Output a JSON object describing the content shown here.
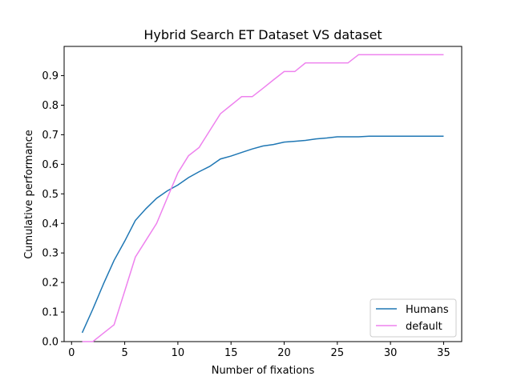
{
  "chart_data": {
    "type": "line",
    "title": "Hybrid Search ET Dataset VS dataset",
    "xlabel": "Number of fixations",
    "ylabel": "Cumulative performance",
    "xlim": [
      -0.7,
      36.7
    ],
    "ylim": [
      0.0,
      0.999
    ],
    "x_ticks": [
      0,
      5,
      10,
      15,
      20,
      25,
      30,
      35
    ],
    "y_ticks": [
      0.0,
      0.1,
      0.2,
      0.3,
      0.4,
      0.5,
      0.6,
      0.7,
      0.8,
      0.9
    ],
    "y_tick_labels": [
      "0.0",
      "0.1",
      "0.2",
      "0.3",
      "0.4",
      "0.5",
      "0.6",
      "0.7",
      "0.8",
      "0.9"
    ],
    "grid": false,
    "legend_position": "lower-right",
    "x": [
      1,
      2,
      3,
      4,
      5,
      6,
      7,
      8,
      9,
      10,
      11,
      12,
      13,
      14,
      15,
      16,
      17,
      18,
      19,
      20,
      21,
      22,
      23,
      24,
      25,
      26,
      27,
      28,
      29,
      30,
      31,
      32,
      33,
      34,
      35
    ],
    "series": [
      {
        "name": "Humans",
        "color": "#1f77b4",
        "values": [
          0.03,
          0.11,
          0.195,
          0.275,
          0.34,
          0.41,
          0.45,
          0.485,
          0.51,
          0.53,
          0.555,
          0.575,
          0.593,
          0.618,
          0.628,
          0.64,
          0.652,
          0.662,
          0.667,
          0.675,
          0.678,
          0.681,
          0.686,
          0.689,
          0.693,
          0.693,
          0.693,
          0.695,
          0.695,
          0.695,
          0.695,
          0.695,
          0.695,
          0.695,
          0.695
        ]
      },
      {
        "name": "default",
        "color": "#ee82ee",
        "values": [
          0.0,
          0.0,
          0.0286,
          0.0571,
          0.171,
          0.286,
          0.343,
          0.4,
          0.486,
          0.571,
          0.629,
          0.657,
          0.714,
          0.771,
          0.8,
          0.829,
          0.829,
          0.857,
          0.886,
          0.914,
          0.914,
          0.943,
          0.943,
          0.943,
          0.943,
          0.943,
          0.971,
          0.971,
          0.971,
          0.971,
          0.971,
          0.971,
          0.971,
          0.971,
          0.971
        ]
      }
    ]
  }
}
